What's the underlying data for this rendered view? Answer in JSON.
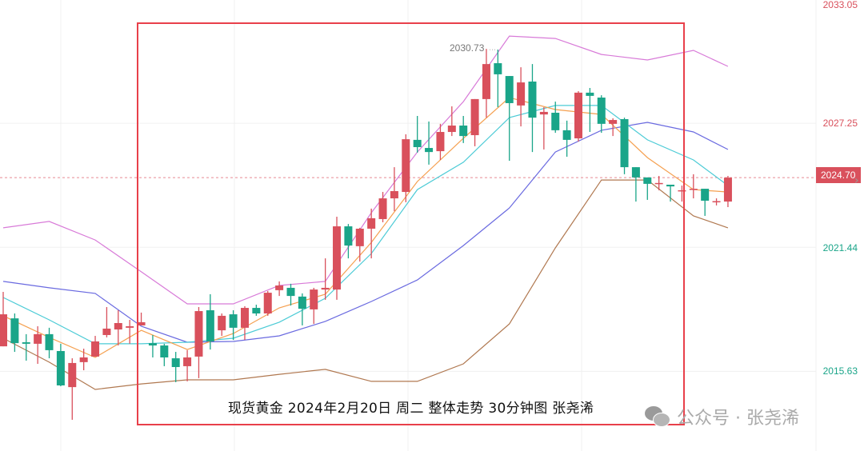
{
  "chart_data": {
    "type": "candlestick",
    "title": "",
    "xlabel": "",
    "ylabel": "",
    "ylim": [
      2012.9,
      2033.05
    ],
    "y_ticks": [
      "2033.05",
      "2027.25",
      "2021.44",
      "2015.63"
    ],
    "y_tick_colors": [
      "#d9505c",
      "#d9505c",
      "#1aa589",
      "#1aa589"
    ],
    "current_price": "2024.70",
    "max_label": "2030.73",
    "grid": true,
    "colors": {
      "up": "#d9505c",
      "down": "#1aa589",
      "ma_fast": "#f5a050",
      "ma_mid": "#4ccbd6",
      "ma_slow": "#6a6ae0",
      "band_upper": "#d87ad8",
      "band_lower": "#b07850",
      "highlight_frame": "#e8404a"
    },
    "ohlc": [
      [
        2016.8,
        2019.35,
        2016.8,
        2018.3
      ],
      [
        2018.11,
        2018.34,
        2016.54,
        2016.95
      ],
      [
        2016.99,
        2017.37,
        2016.13,
        2016.92
      ],
      [
        2016.92,
        2017.74,
        2015.98,
        2017.37
      ],
      [
        2017.37,
        2017.67,
        2016.24,
        2016.62
      ],
      [
        2016.58,
        2016.92,
        2014.93,
        2014.97
      ],
      [
        2014.89,
        2016.24,
        2013.36,
        2016.02
      ],
      [
        2016.06,
        2016.69,
        2015.68,
        2016.28
      ],
      [
        2016.32,
        2017.29,
        2016.32,
        2017.03
      ],
      [
        2017.33,
        2018.64,
        2017.22,
        2017.63
      ],
      [
        2017.59,
        2018.49,
        2016.84,
        2017.89
      ],
      [
        2017.67,
        2018.04,
        2016.92,
        2017.74
      ],
      [
        2017.78,
        2018.38,
        2017.78,
        2017.93
      ],
      [
        2016.95,
        2017.33,
        2016.28,
        2016.84
      ],
      [
        2016.84,
        2016.92,
        2015.87,
        2016.28
      ],
      [
        2016.24,
        2016.54,
        2015.12,
        2015.83
      ],
      [
        2015.87,
        2016.62,
        2015.16,
        2016.28
      ],
      [
        2016.32,
        2018.64,
        2015.31,
        2018.45
      ],
      [
        2018.49,
        2019.24,
        2016.65,
        2017.03
      ],
      [
        2017.55,
        2018.34,
        2017.29,
        2018.23
      ],
      [
        2018.3,
        2018.49,
        2017.1,
        2017.67
      ],
      [
        2017.67,
        2018.68,
        2017.1,
        2018.6
      ],
      [
        2018.6,
        2018.75,
        2018.23,
        2018.34
      ],
      [
        2018.34,
        2019.39,
        2018.23,
        2019.31
      ],
      [
        2019.43,
        2019.84,
        2019.16,
        2019.65
      ],
      [
        2019.54,
        2019.73,
        2018.71,
        2019.16
      ],
      [
        2019.13,
        2019.28,
        2017.78,
        2018.56
      ],
      [
        2018.53,
        2019.54,
        2017.85,
        2019.46
      ],
      [
        2019.46,
        2020.92,
        2018.98,
        2019.54
      ],
      [
        2019.46,
        2022.87,
        2018.98,
        2022.42
      ],
      [
        2022.42,
        2022.53,
        2020.92,
        2021.52
      ],
      [
        2021.49,
        2022.35,
        2020.77,
        2022.31
      ],
      [
        2022.31,
        2023.25,
        2020.92,
        2022.8
      ],
      [
        2022.76,
        2024.03,
        2022.61,
        2023.73
      ],
      [
        2023.73,
        2025.19,
        2023.13,
        2024.07
      ],
      [
        2024.03,
        2026.73,
        2023.55,
        2026.5
      ],
      [
        2026.47,
        2027.59,
        2025.87,
        2026.13
      ],
      [
        2026.09,
        2027.33,
        2025.31,
        2025.9
      ],
      [
        2025.94,
        2027.22,
        2025.53,
        2026.84
      ],
      [
        2026.84,
        2028.04,
        2026.65,
        2027.14
      ],
      [
        2027.14,
        2027.59,
        2026.32,
        2026.65
      ],
      [
        2026.69,
        2028.38,
        2026.17,
        2028.38
      ],
      [
        2028.38,
        2030.73,
        2027.51,
        2030.02
      ],
      [
        2030.06,
        2030.7,
        2028.0,
        2029.54
      ],
      [
        2029.46,
        2029.46,
        2025.49,
        2028.19
      ],
      [
        2028.08,
        2029.87,
        2027.1,
        2029.16
      ],
      [
        2029.2,
        2030.02,
        2025.9,
        2027.51
      ],
      [
        2027.66,
        2028.0,
        2026.02,
        2027.78
      ],
      [
        2027.74,
        2028.26,
        2026.8,
        2026.92
      ],
      [
        2026.92,
        2027.37,
        2025.68,
        2026.47
      ],
      [
        2026.54,
        2028.75,
        2026.39,
        2028.68
      ],
      [
        2028.68,
        2028.9,
        2026.84,
        2028.53
      ],
      [
        2028.45,
        2028.56,
        2026.8,
        2027.22
      ],
      [
        2027.22,
        2027.48,
        2026.65,
        2027.4
      ],
      [
        2027.44,
        2027.51,
        2024.86,
        2025.19
      ],
      [
        2025.19,
        2025.19,
        2023.58,
        2024.71
      ],
      [
        2024.71,
        2024.71,
        2023.66,
        2024.41
      ],
      [
        2024.41,
        2024.78,
        2024.11,
        2024.45
      ],
      [
        2024.37,
        2024.37,
        2023.58,
        2024.29
      ],
      [
        2024.11,
        2024.33,
        2023.58,
        2024.11
      ],
      [
        2024.14,
        2024.86,
        2023.73,
        2024.18
      ],
      [
        2024.18,
        2024.18,
        2022.91,
        2023.62
      ],
      [
        2023.58,
        2023.73,
        2023.4,
        2023.6
      ],
      [
        2023.58,
        2024.78,
        2023.32,
        2024.7
      ]
    ],
    "line_bar_index": [
      0,
      4,
      8,
      12,
      16,
      20,
      24,
      28,
      32,
      36,
      40,
      44,
      48,
      52,
      56,
      60,
      63
    ],
    "lines": [
      {
        "key": "band_upper",
        "values": [
          2022.35,
          2022.65,
          2021.78,
          2020.29,
          2018.79,
          2018.79,
          2019.65,
          2019.84,
          2023.06,
          2025.9,
          2028.26,
          2031.33,
          2031.22,
          2030.47,
          2030.21,
          2030.66,
          2029.91
        ]
      },
      {
        "key": "ma_slow",
        "values": [
          2019.84,
          2019.54,
          2019.28,
          2017.74,
          2016.99,
          2017.03,
          2017.29,
          2017.97,
          2018.9,
          2019.91,
          2021.52,
          2023.28,
          2025.9,
          2026.92,
          2027.29,
          2026.84,
          2026.02
        ]
      },
      {
        "key": "ma_mid",
        "values": [
          2019.09,
          2018.04,
          2016.92,
          2016.92,
          2016.99,
          2017.18,
          2017.93,
          2019.05,
          2021.15,
          2024.14,
          2025.42,
          2027.51,
          2028.08,
          2028.08,
          2026.47,
          2025.53,
          2024.33
        ]
      },
      {
        "key": "ma_fast",
        "values": [
          2018.23,
          2017.22,
          2016.28,
          2017.55,
          2016.65,
          2017.4,
          2018.6,
          2019.24,
          2021.67,
          2024.52,
          2026.54,
          2028.45,
          2027.89,
          2027.66,
          2025.64,
          2024.14,
          2024.03
        ]
      },
      {
        "key": "band_lower",
        "values": [
          2017.18,
          2016.06,
          2014.78,
          2015.04,
          2015.23,
          2015.23,
          2015.49,
          2015.72,
          2015.16,
          2015.16,
          2015.98,
          2017.85,
          2021.41,
          2024.59,
          2024.59,
          2022.91,
          2022.35
        ]
      }
    ]
  },
  "caption": "现货黄金  2024年2月20日 周二  整体走势 30分钟图  张尧浠",
  "watermark": "公众号 · 张尧浠"
}
